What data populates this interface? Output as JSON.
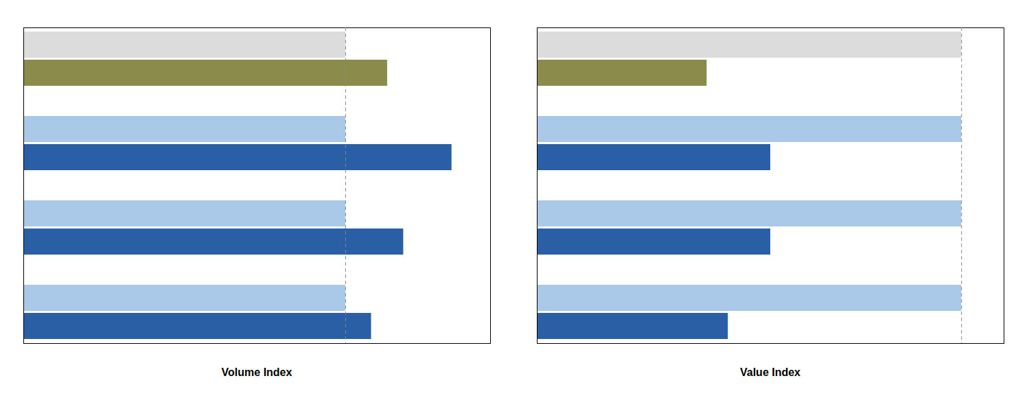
{
  "chart_data": [
    {
      "type": "bar",
      "orientation": "horizontal",
      "xlabel": "Volume Index",
      "categories": [
        null,
        null,
        null,
        null
      ],
      "series": [
        {
          "values": [
            100,
            100,
            100,
            100
          ],
          "colors": [
            "#dcdcdc",
            "#aac8e8",
            "#aac8e8",
            "#aac8e8"
          ]
        },
        {
          "values": [
            113,
            133,
            118,
            108
          ],
          "colors": [
            "#8b8b4b",
            "#2a5fa5",
            "#2a5fa5",
            "#2a5fa5"
          ]
        }
      ],
      "xlim": [
        0,
        145
      ],
      "xticks": [],
      "tick_labels": false,
      "grid": false,
      "reference_lines": [
        {
          "x": 100,
          "color": "#888888",
          "line_style": "dashed"
        }
      ]
    },
    {
      "type": "bar",
      "orientation": "horizontal",
      "xlabel": "Value Index",
      "categories": [
        null,
        null,
        null,
        null
      ],
      "series": [
        {
          "values": [
            100,
            100,
            100,
            100
          ],
          "colors": [
            "#dcdcdc",
            "#aac8e8",
            "#aac8e8",
            "#aac8e8"
          ]
        },
        {
          "values": [
            40,
            55,
            55,
            45
          ],
          "colors": [
            "#8b8b4b",
            "#2a5fa5",
            "#2a5fa5",
            "#2a5fa5"
          ]
        }
      ],
      "xlim": [
        0,
        110
      ],
      "xticks": [],
      "tick_labels": false,
      "grid": false,
      "reference_lines": [
        {
          "x": 100,
          "color": "#888888",
          "line_style": "dashed"
        }
      ]
    }
  ]
}
